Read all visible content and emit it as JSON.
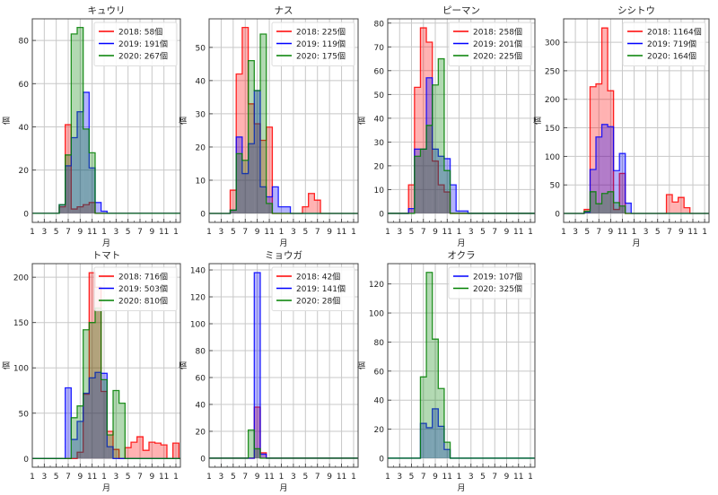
{
  "chart_data": [
    {
      "type": "histogram-step",
      "title": "キュウリ",
      "xlabel": "月",
      "ylabel": "個",
      "xlim": [
        1,
        25.75
      ],
      "ylim": [
        -4.2,
        90
      ],
      "yticks": [
        0,
        20,
        40,
        60,
        80
      ],
      "xticks": [
        1,
        3,
        5,
        7,
        9,
        11,
        13,
        15,
        17,
        19,
        21,
        23,
        25
      ],
      "xticklabels": [
        "1",
        "3",
        "5",
        "7",
        "9",
        "11",
        "1",
        "3",
        "5",
        "7",
        "9",
        "11",
        "1"
      ],
      "legend": "top-right",
      "series": [
        {
          "name": "2018: 58個",
          "color": "#ff0000",
          "x": [
            6,
            7,
            8,
            9,
            10,
            11
          ],
          "values": [
            3,
            41,
            2,
            3,
            4,
            5
          ]
        },
        {
          "name": "2019: 191個",
          "color": "#0000ff",
          "x": [
            6,
            7,
            8,
            9,
            10,
            11,
            12,
            13
          ],
          "values": [
            4,
            22,
            35,
            47,
            56,
            21,
            5,
            1
          ]
        },
        {
          "name": "2020: 267個",
          "color": "#008000",
          "x": [
            6,
            7,
            8,
            9,
            10,
            11
          ],
          "values": [
            4,
            27,
            83,
            86,
            39,
            28
          ]
        }
      ]
    },
    {
      "type": "histogram-step",
      "title": "ナス",
      "xlabel": "月",
      "ylabel": "個",
      "xlim": [
        1,
        25.75
      ],
      "ylim": [
        -2.7,
        58.6
      ],
      "yticks": [
        0,
        10,
        20,
        30,
        40,
        50
      ],
      "xticks": [
        1,
        3,
        5,
        7,
        9,
        11,
        13,
        15,
        17,
        19,
        21,
        23,
        25
      ],
      "xticklabels": [
        "1",
        "3",
        "5",
        "7",
        "9",
        "11",
        "1",
        "3",
        "5",
        "7",
        "9",
        "11",
        "1"
      ],
      "legend": "top-right",
      "series": [
        {
          "name": "2018: 225個",
          "color": "#ff0000",
          "x": [
            5,
            6,
            7,
            8,
            9,
            10,
            11,
            17,
            18,
            19
          ],
          "values": [
            7,
            42,
            56,
            33,
            27,
            22,
            26,
            2,
            6,
            4
          ]
        },
        {
          "name": "2019: 119個",
          "color": "#0000ff",
          "x": [
            5,
            6,
            7,
            8,
            9,
            10,
            11,
            12,
            13,
            14
          ],
          "values": [
            1,
            23,
            12,
            21,
            37,
            8,
            5,
            8,
            2,
            2
          ]
        },
        {
          "name": "2020: 175個",
          "color": "#008000",
          "x": [
            5,
            6,
            7,
            8,
            9,
            10,
            11
          ],
          "values": [
            1,
            18,
            16,
            46,
            37,
            54,
            3
          ]
        }
      ]
    },
    {
      "type": "histogram-step",
      "title": "ピーマン",
      "xlabel": "月",
      "ylabel": "個",
      "xlim": [
        1,
        25.75
      ],
      "ylim": [
        -3.8,
        81.8
      ],
      "yticks": [
        0,
        10,
        20,
        30,
        40,
        50,
        60,
        70,
        80
      ],
      "xticks": [
        1,
        3,
        5,
        7,
        9,
        11,
        13,
        15,
        17,
        19,
        21,
        23,
        25
      ],
      "xticklabels": [
        "1",
        "3",
        "5",
        "7",
        "9",
        "11",
        "1",
        "3",
        "5",
        "7",
        "9",
        "11",
        "1"
      ],
      "legend": "top-right",
      "series": [
        {
          "name": "2018: 258個",
          "color": "#ff0000",
          "x": [
            5,
            6,
            7,
            8,
            9,
            10,
            11
          ],
          "values": [
            12,
            53,
            78,
            72,
            22,
            12,
            9
          ]
        },
        {
          "name": "2019: 201個",
          "color": "#0000ff",
          "x": [
            5,
            6,
            7,
            8,
            9,
            10,
            11,
            12,
            13,
            14
          ],
          "values": [
            2,
            27,
            27,
            57,
            27,
            24,
            23,
            12,
            1,
            1
          ]
        },
        {
          "name": "2020: 225個",
          "color": "#008000",
          "x": [
            6,
            7,
            8,
            9,
            10,
            11
          ],
          "values": [
            24,
            27,
            37,
            54,
            65,
            18
          ]
        }
      ]
    },
    {
      "type": "histogram-step",
      "title": "シシトウ",
      "xlabel": "月",
      "ylabel": "個",
      "xlim": [
        1,
        25.75
      ],
      "ylim": [
        -15.7,
        341
      ],
      "yticks": [
        0,
        50,
        100,
        150,
        200,
        250,
        300
      ],
      "xticks": [
        1,
        3,
        5,
        7,
        9,
        11,
        13,
        15,
        17,
        19,
        21,
        23,
        25
      ],
      "xticklabels": [
        "1",
        "3",
        "5",
        "7",
        "9",
        "11",
        "1",
        "3",
        "5",
        "7",
        "9",
        "11",
        "1"
      ],
      "legend": "top-right",
      "series": [
        {
          "name": "2018: 1164個",
          "color": "#ff0000",
          "x": [
            5,
            6,
            7,
            8,
            9,
            10,
            11,
            19,
            20,
            21,
            22
          ],
          "values": [
            7,
            222,
            227,
            325,
            215,
            7,
            70,
            33,
            20,
            28,
            10
          ]
        },
        {
          "name": "2019: 719個",
          "color": "#0000ff",
          "x": [
            5,
            6,
            7,
            8,
            9,
            10,
            11,
            12
          ],
          "values": [
            2,
            77,
            134,
            156,
            152,
            75,
            105,
            18
          ]
        },
        {
          "name": "2020: 164個",
          "color": "#008000",
          "x": [
            5,
            6,
            7,
            8,
            9,
            10,
            11
          ],
          "values": [
            4,
            38,
            17,
            35,
            38,
            19,
            13
          ]
        }
      ]
    },
    {
      "type": "histogram-step",
      "title": "トマト",
      "xlabel": "月",
      "ylabel": "個",
      "xlim": [
        1,
        25.75
      ],
      "ylim": [
        -9.6,
        215
      ],
      "yticks": [
        0,
        50,
        100,
        150,
        200
      ],
      "xticks": [
        1,
        3,
        5,
        7,
        9,
        11,
        13,
        15,
        17,
        19,
        21,
        23,
        25
      ],
      "xticklabels": [
        "1",
        "3",
        "5",
        "7",
        "9",
        "11",
        "1",
        "3",
        "5",
        "7",
        "9",
        "11",
        "1"
      ],
      "legend": "top-right",
      "series": [
        {
          "name": "2018: 716個",
          "color": "#ff0000",
          "x": [
            9,
            10,
            11,
            12,
            13,
            14,
            15,
            17,
            18,
            19,
            20,
            21,
            22,
            23,
            25
          ],
          "values": [
            7,
            71,
            205,
            189,
            74,
            30,
            10,
            12,
            18,
            24,
            9,
            18,
            17,
            15,
            17
          ]
        },
        {
          "name": "2019: 503個",
          "color": "#0000ff",
          "x": [
            7,
            8,
            9,
            10,
            11,
            12,
            13,
            14
          ],
          "values": [
            78,
            21,
            41,
            72,
            89,
            95,
            94,
            13
          ]
        },
        {
          "name": "2020: 810個",
          "color": "#008000",
          "x": [
            8,
            9,
            10,
            11,
            12,
            13,
            14,
            15,
            16
          ],
          "values": [
            45,
            58,
            142,
            150,
            166,
            87,
            26,
            75,
            61
          ]
        }
      ]
    },
    {
      "type": "histogram-step",
      "title": "ミョウガ",
      "xlabel": "月",
      "ylabel": "個",
      "xlim": [
        1,
        25.75
      ],
      "ylim": [
        -6.7,
        144.7
      ],
      "yticks": [
        0,
        20,
        40,
        60,
        80,
        100,
        120,
        140
      ],
      "xticks": [
        1,
        3,
        5,
        7,
        9,
        11,
        13,
        15,
        17,
        19,
        21,
        23,
        25
      ],
      "xticklabels": [
        "1",
        "3",
        "5",
        "7",
        "9",
        "11",
        "1",
        "3",
        "5",
        "7",
        "9",
        "11",
        "1"
      ],
      "legend": "top-right",
      "series": [
        {
          "name": "2018: 42個",
          "color": "#ff0000",
          "x": [
            9,
            10
          ],
          "values": [
            38,
            4
          ]
        },
        {
          "name": "2019: 141個",
          "color": "#0000ff",
          "x": [
            9,
            10
          ],
          "values": [
            138,
            3
          ]
        },
        {
          "name": "2020: 28個",
          "color": "#008000",
          "x": [
            8,
            9
          ],
          "values": [
            21,
            7
          ]
        }
      ]
    },
    {
      "type": "histogram-step",
      "title": "オクラ",
      "xlabel": "月",
      "ylabel": "個",
      "xlim": [
        1,
        25.75
      ],
      "ylim": [
        -6.2,
        134
      ],
      "yticks": [
        0,
        20,
        40,
        60,
        80,
        100,
        120
      ],
      "xticks": [
        1,
        3,
        5,
        7,
        9,
        11,
        13,
        15,
        17,
        19,
        21,
        23,
        25
      ],
      "xticklabels": [
        "1",
        "3",
        "5",
        "7",
        "9",
        "11",
        "1",
        "3",
        "5",
        "7",
        "9",
        "11",
        "1"
      ],
      "legend": "top-right",
      "series": [
        {
          "name": "2019: 107個",
          "color": "#0000ff",
          "x": [
            7,
            8,
            9,
            10,
            11
          ],
          "values": [
            24,
            21,
            34,
            22,
            6
          ]
        },
        {
          "name": "2020: 325個",
          "color": "#008000",
          "x": [
            7,
            8,
            9,
            10,
            11
          ],
          "values": [
            56,
            128,
            82,
            48,
            11
          ]
        }
      ]
    }
  ]
}
